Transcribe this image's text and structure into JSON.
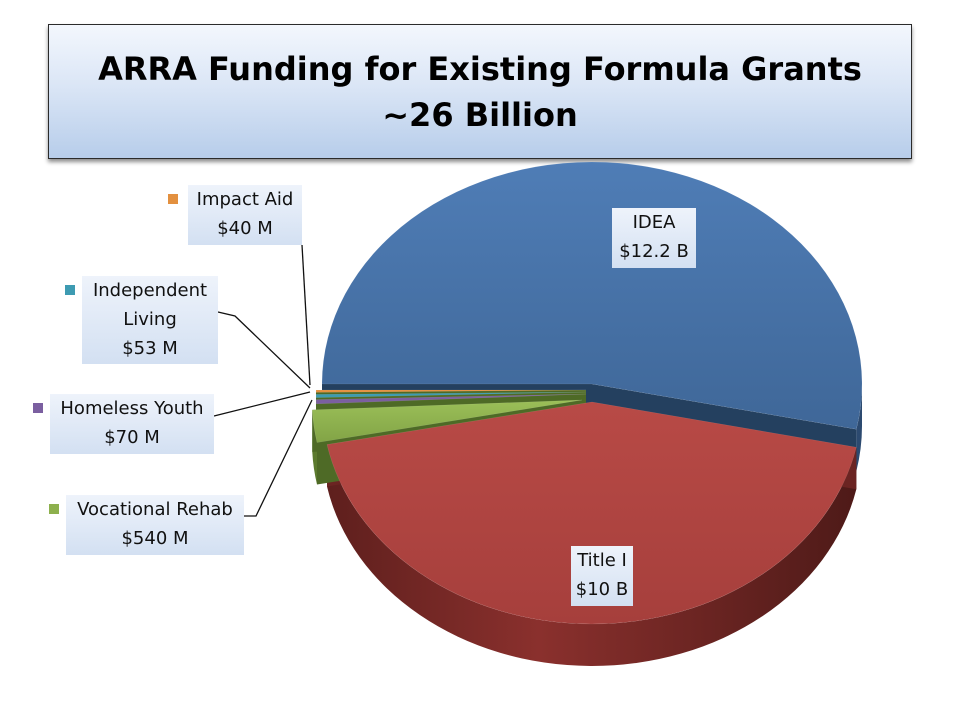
{
  "chart_data": {
    "type": "pie",
    "title": "ARRA Funding for Existing Formula Grants",
    "subtitle": "~26 Billion",
    "slices": [
      {
        "name": "IDEA",
        "value_text": "$12.2 B",
        "value_millions": 12200,
        "color": "#4873a8"
      },
      {
        "name": "Title I",
        "value_text": "$10 B",
        "value_millions": 10000,
        "color": "#b04542"
      },
      {
        "name": "Vocational Rehab",
        "value_text": "$540 M",
        "value_millions": 540,
        "color": "#8db04d"
      },
      {
        "name": "Homeless Youth",
        "value_text": "$70 M",
        "value_millions": 70,
        "color": "#7b5fa0"
      },
      {
        "name": "Independent Living",
        "value_text": "$53 M",
        "value_millions": 53,
        "color": "#3d9bb2"
      },
      {
        "name": "Impact Aid",
        "value_text": "$40 M",
        "value_millions": 40,
        "color": "#e3903f"
      }
    ]
  },
  "labels": {
    "idea": {
      "line1": "IDEA",
      "line2": "$12.2 B"
    },
    "title1": {
      "line1": "Title I",
      "line2": "$10 B"
    },
    "impact": {
      "line1": "Impact Aid",
      "line2": "$40 M"
    },
    "indep": {
      "line1": "Independent",
      "line2": "Living",
      "line3": "$53 M"
    },
    "homeless": {
      "line1": "Homeless Youth",
      "line2": "$70 M"
    },
    "vocrehab": {
      "line1": "Vocational Rehab",
      "line2": "$540 M"
    }
  }
}
